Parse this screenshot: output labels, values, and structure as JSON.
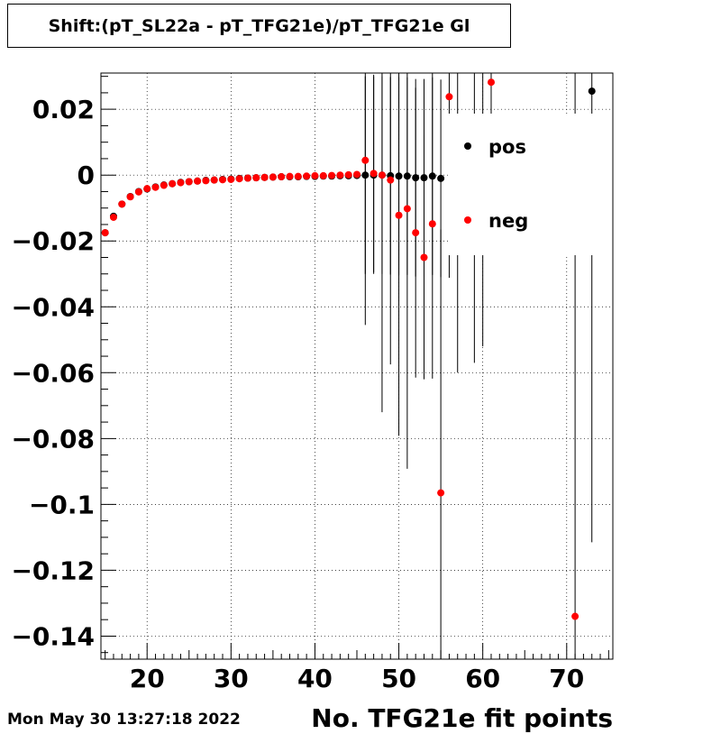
{
  "title": "Shift:(pT_SL22a - pT_TFG21e)/pT_TFG21e Gl",
  "date_stamp": "Mon May 30 13:27:18 2022",
  "chart_data": {
    "type": "scatter",
    "title": "Shift:(pT_SL22a - pT_TFG21e)/pT_TFG21e Gl",
    "xlabel": "No. TFG21e fit points",
    "ylabel": "",
    "xlim": [
      14.5,
      75.5
    ],
    "ylim": [
      -0.147,
      0.031
    ],
    "xticks": [
      20,
      30,
      40,
      50,
      60,
      70
    ],
    "yticks": [
      0.02,
      0,
      -0.02,
      -0.04,
      -0.06,
      -0.08,
      -0.1,
      -0.12,
      -0.14
    ],
    "ytick_labels": [
      "0.02",
      "0",
      "−0.02",
      "−0.04",
      "−0.06",
      "−0.08",
      "−0.1",
      "−0.12",
      "−0.14"
    ],
    "grid": true,
    "legend_position": "top-right",
    "series": [
      {
        "name": "pos",
        "color": "#000000",
        "points": [
          {
            "x": 15,
            "y": -0.0175,
            "err": 0.0005
          },
          {
            "x": 16,
            "y": -0.0125,
            "err": 0.0005
          },
          {
            "x": 17,
            "y": -0.0088,
            "err": 0.0004
          },
          {
            "x": 18,
            "y": -0.0065,
            "err": 0.0004
          },
          {
            "x": 19,
            "y": -0.005,
            "err": 0.0003
          },
          {
            "x": 20,
            "y": -0.0042,
            "err": 0.0003
          },
          {
            "x": 21,
            "y": -0.0036,
            "err": 0.0003
          },
          {
            "x": 22,
            "y": -0.003,
            "err": 0.0003
          },
          {
            "x": 23,
            "y": -0.0026,
            "err": 0.0002
          },
          {
            "x": 24,
            "y": -0.0022,
            "err": 0.0002
          },
          {
            "x": 25,
            "y": -0.002,
            "err": 0.0002
          },
          {
            "x": 26,
            "y": -0.0018,
            "err": 0.0002
          },
          {
            "x": 27,
            "y": -0.0016,
            "err": 0.0002
          },
          {
            "x": 28,
            "y": -0.0015,
            "err": 0.0002
          },
          {
            "x": 29,
            "y": -0.0013,
            "err": 0.0002
          },
          {
            "x": 30,
            "y": -0.0012,
            "err": 0.0002
          },
          {
            "x": 31,
            "y": -0.001,
            "err": 0.0002
          },
          {
            "x": 32,
            "y": -0.0009,
            "err": 0.0002
          },
          {
            "x": 33,
            "y": -0.0008,
            "err": 0.0002
          },
          {
            "x": 34,
            "y": -0.0007,
            "err": 0.0002
          },
          {
            "x": 35,
            "y": -0.0006,
            "err": 0.0002
          },
          {
            "x": 36,
            "y": -0.0005,
            "err": 0.0002
          },
          {
            "x": 37,
            "y": -0.0005,
            "err": 0.0002
          },
          {
            "x": 38,
            "y": -0.0005,
            "err": 0.0002
          },
          {
            "x": 39,
            "y": -0.0004,
            "err": 0.0002
          },
          {
            "x": 40,
            "y": -0.0004,
            "err": 0.0002
          },
          {
            "x": 41,
            "y": -0.0003,
            "err": 0.0002
          },
          {
            "x": 42,
            "y": -0.0003,
            "err": 0.0002
          },
          {
            "x": 43,
            "y": -0.0002,
            "err": 0.0002
          },
          {
            "x": 44,
            "y": -0.0002,
            "err": 0.0002
          },
          {
            "x": 45,
            "y": -0.0001,
            "err": 0.0003
          },
          {
            "x": 46,
            "y": 0.0,
            "err": 0.03
          },
          {
            "x": 47,
            "y": 0.0,
            "err": 0.03
          },
          {
            "x": 48,
            "y": 0.0,
            "err": 0.03
          },
          {
            "x": 49,
            "y": -0.0002,
            "err": 0.03
          },
          {
            "x": 50,
            "y": -0.0003,
            "err": 0.03
          },
          {
            "x": 51,
            "y": -0.0003,
            "err": 0.03
          },
          {
            "x": 52,
            "y": -0.0008,
            "err": 0.03
          },
          {
            "x": 53,
            "y": -0.0008,
            "err": 0.03
          },
          {
            "x": 54,
            "y": -0.0003,
            "err": 0.03
          },
          {
            "x": 55,
            "y": -0.001,
            "err": 0.03
          },
          {
            "x": 73,
            "y": 0.0255,
            "err": 0.137
          }
        ]
      },
      {
        "name": "neg",
        "color": "#ff0000",
        "points": [
          {
            "x": 15,
            "y": -0.0175,
            "err": 0.0005
          },
          {
            "x": 16,
            "y": -0.0128,
            "err": 0.0005
          },
          {
            "x": 17,
            "y": -0.0088,
            "err": 0.0004
          },
          {
            "x": 18,
            "y": -0.0066,
            "err": 0.0004
          },
          {
            "x": 19,
            "y": -0.0051,
            "err": 0.0003
          },
          {
            "x": 20,
            "y": -0.0041,
            "err": 0.0003
          },
          {
            "x": 21,
            "y": -0.0037,
            "err": 0.0003
          },
          {
            "x": 22,
            "y": -0.0031,
            "err": 0.0003
          },
          {
            "x": 23,
            "y": -0.0026,
            "err": 0.0002
          },
          {
            "x": 24,
            "y": -0.0023,
            "err": 0.0002
          },
          {
            "x": 25,
            "y": -0.002,
            "err": 0.0002
          },
          {
            "x": 26,
            "y": -0.0018,
            "err": 0.0002
          },
          {
            "x": 27,
            "y": -0.0017,
            "err": 0.0002
          },
          {
            "x": 28,
            "y": -0.0015,
            "err": 0.0002
          },
          {
            "x": 29,
            "y": -0.0014,
            "err": 0.0002
          },
          {
            "x": 30,
            "y": -0.0013,
            "err": 0.0002
          },
          {
            "x": 31,
            "y": -0.0011,
            "err": 0.0002
          },
          {
            "x": 32,
            "y": -0.0009,
            "err": 0.0002
          },
          {
            "x": 33,
            "y": -0.0008,
            "err": 0.0002
          },
          {
            "x": 34,
            "y": -0.0007,
            "err": 0.0002
          },
          {
            "x": 35,
            "y": -0.0006,
            "err": 0.0002
          },
          {
            "x": 36,
            "y": -0.0005,
            "err": 0.0002
          },
          {
            "x": 37,
            "y": -0.0004,
            "err": 0.0002
          },
          {
            "x": 38,
            "y": -0.0004,
            "err": 0.0002
          },
          {
            "x": 39,
            "y": -0.0003,
            "err": 0.0002
          },
          {
            "x": 40,
            "y": -0.0002,
            "err": 0.0002
          },
          {
            "x": 41,
            "y": -0.0002,
            "err": 0.0002
          },
          {
            "x": 42,
            "y": -0.0001,
            "err": 0.0002
          },
          {
            "x": 43,
            "y": 0.0,
            "err": 0.0002
          },
          {
            "x": 44,
            "y": 0.0001,
            "err": 0.0002
          },
          {
            "x": 45,
            "y": 0.0002,
            "err": 0.0003
          },
          {
            "x": 46,
            "y": 0.0045,
            "err": 0.05
          },
          {
            "x": 47,
            "y": 0.0005,
            "err": 0.03
          },
          {
            "x": 48,
            "y": 0.0,
            "err": 0.072
          },
          {
            "x": 49,
            "y": -0.0015,
            "err": 0.056
          },
          {
            "x": 50,
            "y": -0.0122,
            "err": 0.067
          },
          {
            "x": 51,
            "y": -0.0102,
            "err": 0.079
          },
          {
            "x": 52,
            "y": -0.0175,
            "err": 0.044
          },
          {
            "x": 53,
            "y": -0.025,
            "err": 0.037
          },
          {
            "x": 54,
            "y": -0.0148,
            "err": 0.047
          },
          {
            "x": 55,
            "y": -0.0965,
            "err": 0.08
          },
          {
            "x": 56,
            "y": 0.0238,
            "err": 0.055
          },
          {
            "x": 61,
            "y": 0.0282,
            "err": 0.05
          },
          {
            "x": 71,
            "y": -0.134,
            "err": 0.18
          }
        ]
      }
    ],
    "extra_error_bars": [
      {
        "x": 57,
        "low": -0.06,
        "high": 0.031
      },
      {
        "x": 59,
        "low": -0.057,
        "high": 0.031
      },
      {
        "x": 60,
        "low": -0.052,
        "high": 0.031
      }
    ]
  }
}
